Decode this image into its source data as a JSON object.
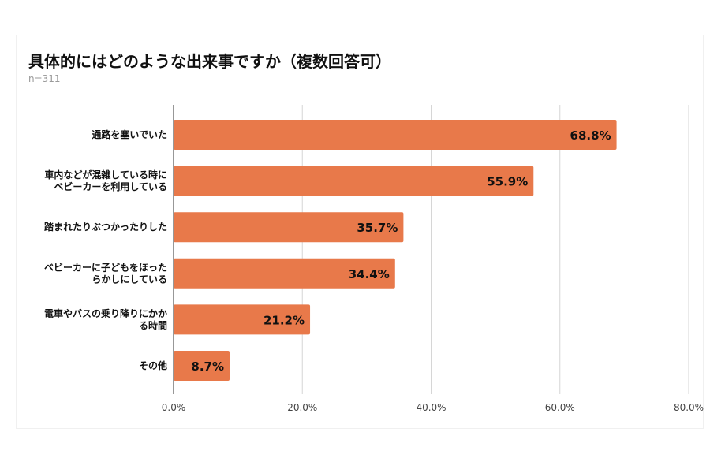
{
  "chart_data": {
    "type": "bar",
    "orientation": "horizontal",
    "title": "具体的にはどのような出来事ですか（複数回答可）",
    "subtitle": "n=311",
    "categories": [
      [
        "通路を塞いでいた"
      ],
      [
        "車内などが混雑している時に",
        "ベビーカーを利用している"
      ],
      [
        "踏まれたりぶつかったりした"
      ],
      [
        "ベビーカーに子どもをほった",
        "らかしにしている"
      ],
      [
        "電車やバスの乗り降りにかか",
        "る時間"
      ],
      [
        "その他"
      ]
    ],
    "values": [
      68.8,
      55.9,
      35.7,
      34.4,
      21.2,
      8.7
    ],
    "data_labels": [
      "68.8%",
      "55.9%",
      "35.7%",
      "34.4%",
      "21.2%",
      "8.7%"
    ],
    "xlim": [
      0,
      80
    ],
    "x_ticks": [
      "0.0%",
      "20.0%",
      "40.0%",
      "60.0%",
      "80.0%"
    ],
    "grid": true,
    "bar_color": "#E8794A"
  }
}
